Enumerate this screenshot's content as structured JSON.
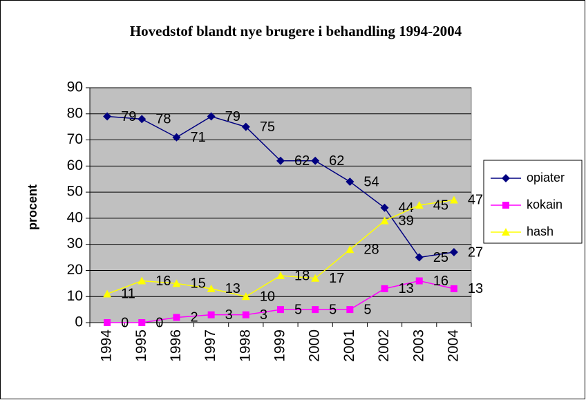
{
  "chart_data": {
    "type": "line",
    "title": "Hovedstof blandt nye brugere i behandling 1994-2004",
    "y_label": "procent",
    "categories": [
      "1994",
      "1995",
      "1996",
      "1997",
      "1998",
      "1999",
      "2000",
      "2001",
      "2002",
      "2003",
      "2004"
    ],
    "series": [
      {
        "name": "opiater",
        "color": "#000080",
        "marker": "diamond",
        "values": [
          79,
          78,
          71,
          79,
          75,
          62,
          62,
          54,
          44,
          25,
          27
        ]
      },
      {
        "name": "kokain",
        "color": "#ff00ff",
        "marker": "square",
        "values": [
          0,
          0,
          2,
          3,
          3,
          5,
          5,
          5,
          13,
          16,
          13
        ]
      },
      {
        "name": "hash",
        "color": "#ffff00",
        "marker": "triangle",
        "values": [
          11,
          16,
          15,
          13,
          10,
          18,
          17,
          28,
          39,
          45,
          47
        ]
      }
    ],
    "ylim": [
      0,
      90
    ],
    "yticks": [
      0,
      10,
      20,
      30,
      40,
      50,
      60,
      70,
      80,
      90
    ],
    "grid": true,
    "legend": "right",
    "plot_background": "#c0c0c0"
  }
}
